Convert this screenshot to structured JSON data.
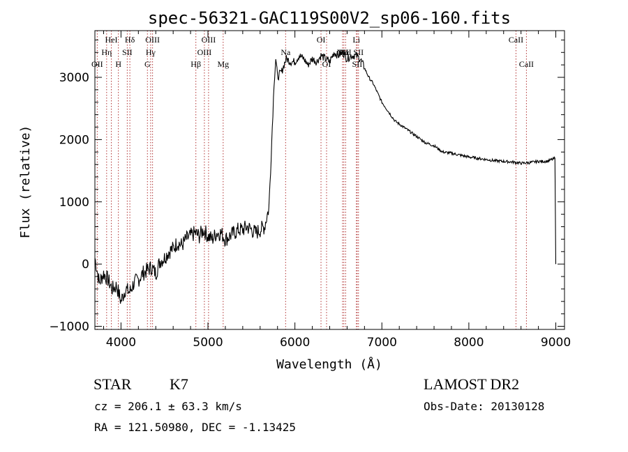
{
  "chart_data": {
    "type": "line",
    "title": "spec-56321-GAC119S00V2_sp06-160.fits",
    "xlabel": "Wavelength (Å)",
    "ylabel": "Flux (relative)",
    "xlim": [
      3700,
      9100
    ],
    "ylim": [
      -1050,
      3750
    ],
    "xticks": [
      4000,
      5000,
      6000,
      7000,
      8000,
      9000
    ],
    "yticks": [
      -1000,
      0,
      1000,
      2000,
      3000
    ],
    "grid": false,
    "series": [
      {
        "color": "#000000",
        "x": [
          3700,
          3750,
          3800,
          3850,
          3900,
          3950,
          4000,
          4050,
          4100,
          4150,
          4200,
          4250,
          4300,
          4350,
          4400,
          4450,
          4500,
          4550,
          4600,
          4650,
          4700,
          4750,
          4800,
          4850,
          4900,
          4950,
          5000,
          5050,
          5100,
          5150,
          5200,
          5250,
          5300,
          5350,
          5400,
          5450,
          5500,
          5550,
          5600,
          5650,
          5700,
          5720,
          5740,
          5760,
          5780,
          5800,
          5850,
          5900,
          5950,
          6000,
          6050,
          6100,
          6150,
          6200,
          6250,
          6300,
          6350,
          6400,
          6450,
          6500,
          6550,
          6600,
          6650,
          6700,
          6750,
          6800,
          6850,
          6900,
          6950,
          7000,
          7050,
          7100,
          7150,
          7200,
          7300,
          7400,
          7500,
          7600,
          7700,
          7800,
          7900,
          8000,
          8100,
          8200,
          8300,
          8400,
          8500,
          8600,
          8700,
          8800,
          8900,
          8990,
          9000
        ],
        "y": [
          100,
          -300,
          -150,
          -250,
          -400,
          -350,
          -600,
          -400,
          -450,
          -300,
          -250,
          -150,
          -100,
          -50,
          -150,
          50,
          100,
          200,
          250,
          350,
          300,
          400,
          450,
          500,
          450,
          550,
          450,
          400,
          500,
          500,
          400,
          450,
          500,
          550,
          550,
          600,
          550,
          500,
          550,
          600,
          900,
          1500,
          2200,
          2900,
          3300,
          3000,
          3100,
          3300,
          3250,
          3250,
          3350,
          3300,
          3200,
          3300,
          3250,
          3350,
          3300,
          3250,
          3400,
          3350,
          3400,
          3300,
          3350,
          3350,
          3300,
          3150,
          3000,
          2900,
          2750,
          2600,
          2500,
          2400,
          2300,
          2250,
          2150,
          2050,
          1950,
          1900,
          1800,
          1780,
          1750,
          1720,
          1700,
          1680,
          1660,
          1650,
          1640,
          1620,
          1630,
          1650,
          1650,
          1700,
          0
        ]
      }
    ],
    "annotations": [
      {
        "label": "OII",
        "x": 3727,
        "row": 3
      },
      {
        "label": "Hη",
        "x": 3835,
        "row": 2
      },
      {
        "label": "HeI",
        "x": 3889,
        "row": 1
      },
      {
        "label": "H",
        "x": 3970,
        "row": 3
      },
      {
        "label": "SII",
        "x": 4072,
        "row": 2
      },
      {
        "label": "Hδ",
        "x": 4102,
        "row": 1
      },
      {
        "label": "G",
        "x": 4304,
        "row": 3
      },
      {
        "label": "Hγ",
        "x": 4341,
        "row": 2
      },
      {
        "label": "OIII",
        "x": 4363,
        "row": 1
      },
      {
        "label": "Hβ",
        "x": 4861,
        "row": 3
      },
      {
        "label": "OIII",
        "x": 4959,
        "row": 2
      },
      {
        "label": "OIII",
        "x": 5007,
        "row": 1
      },
      {
        "label": "Mg",
        "x": 5175,
        "row": 3
      },
      {
        "label": "Na",
        "x": 5893,
        "row": 2
      },
      {
        "label": "OI",
        "x": 6300,
        "row": 1
      },
      {
        "label": "OI",
        "x": 6364,
        "row": 3
      },
      {
        "label": "NII",
        "x": 6548,
        "row": 2
      },
      {
        "label": "Hα",
        "x": 6563,
        "row": 2
      },
      {
        "label": "NII",
        "x": 6583,
        "row": 2
      },
      {
        "label": "Li",
        "x": 6707,
        "row": 1
      },
      {
        "label": "SII",
        "x": 6716,
        "row": 3
      },
      {
        "label": "SII",
        "x": 6731,
        "row": 2
      },
      {
        "label": "CaII",
        "x": 8542,
        "row": 1
      },
      {
        "label": "CaII",
        "x": 8662,
        "row": 3
      }
    ],
    "line_color": "#b03030"
  },
  "info": {
    "class_label": "STAR",
    "subclass": "K7",
    "survey": "LAMOST DR2",
    "cz": "cz = 206.1 ± 63.3 km/s",
    "obs_date": "Obs-Date: 20130128",
    "coords": "RA = 121.50980, DEC =  -1.13425"
  }
}
